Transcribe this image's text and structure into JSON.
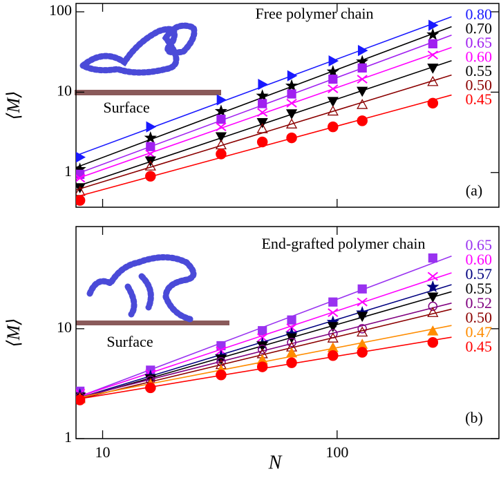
{
  "chart_data": [
    {
      "type": "line",
      "title": "Free polymer chain",
      "annotations": [
        "Surface",
        "(a)"
      ],
      "y_label": "⟨M⟩",
      "log_x": true,
      "log_y": true,
      "xlim": [
        7.7,
        490
      ],
      "ylim": [
        0.37,
        127
      ],
      "xticks": [
        10,
        100
      ],
      "yticks": [
        1,
        10,
        100
      ],
      "x": [
        8,
        16,
        32,
        48,
        64,
        96,
        128,
        256
      ],
      "series": [
        {
          "name": "0.80",
          "color": "#1a1aff",
          "marker": "triangle-right",
          "values": [
            1.55,
            3.7,
            8,
            12.5,
            16,
            24.5,
            33,
            68
          ]
        },
        {
          "name": "0.70",
          "color": "#000000",
          "marker": "star",
          "values": [
            1.1,
            2.7,
            5.8,
            9,
            12,
            18,
            24,
            52
          ]
        },
        {
          "name": "0.65",
          "color": "#a020f0",
          "marker": "square",
          "values": [
            0.95,
            2.1,
            4.6,
            7.2,
            9.5,
            14.5,
            20,
            40
          ]
        },
        {
          "name": "0.60",
          "color": "#ff00ff",
          "marker": "x",
          "values": [
            0.85,
            1.7,
            3.7,
            5.6,
            7.3,
            11,
            14.5,
            29
          ]
        },
        {
          "name": "0.55",
          "color": "#000000",
          "marker": "triangle-down",
          "values": [
            0.65,
            1.4,
            2.8,
            4.2,
            5.4,
            7.7,
            10.3,
            20
          ]
        },
        {
          "name": "0.50",
          "color": "#8b0000",
          "marker": "triangle-up-open",
          "values": [
            0.58,
            1.2,
            2.2,
            3.5,
            4.0,
            5.8,
            7.0,
            13.5
          ]
        },
        {
          "name": "0.45",
          "color": "#ff0000",
          "marker": "circle",
          "values": [
            0.45,
            0.9,
            1.7,
            2.4,
            2.7,
            3.7,
            4.4,
            7.3
          ]
        }
      ]
    },
    {
      "type": "line",
      "title": "End-grafted polymer chain",
      "annotations": [
        "Surface",
        "(b)"
      ],
      "y_label": "⟨M⟩",
      "x_label": "N",
      "log_x": true,
      "log_y": true,
      "xlim": [
        7.7,
        490
      ],
      "ylim": [
        1,
        85
      ],
      "xticks": [
        10,
        100
      ],
      "yticks": [
        1,
        10
      ],
      "x": [
        8,
        16,
        32,
        48,
        64,
        96,
        128,
        256
      ],
      "series": [
        {
          "name": "0.65",
          "color": "#9932f0",
          "marker": "square",
          "values": [
            2.7,
            4.2,
            7,
            9.6,
            12,
            17.5,
            23,
            44
          ]
        },
        {
          "name": "0.60",
          "color": "#ff00ff",
          "marker": "x",
          "values": [
            2.6,
            3.9,
            6.3,
            8.3,
            10.2,
            14,
            17.5,
            30
          ]
        },
        {
          "name": "0.57",
          "color": "#000080",
          "marker": "star",
          "values": [
            2.5,
            3.7,
            5.6,
            7.3,
            9.0,
            11.5,
            14,
            24
          ]
        },
        {
          "name": "0.55",
          "color": "#000000",
          "marker": "triangle-down",
          "values": [
            2.4,
            3.5,
            5.3,
            7,
            8.3,
            10.5,
            13,
            19.5
          ]
        },
        {
          "name": "0.52",
          "color": "#800080",
          "marker": "circle-open",
          "values": [
            2.4,
            3.4,
            5,
            6.5,
            7.5,
            9.0,
            10,
            16
          ]
        },
        {
          "name": "0.50",
          "color": "#8b0000",
          "marker": "triangle-up-open",
          "values": [
            2.35,
            3.2,
            4.7,
            5.9,
            6.8,
            8.2,
            9.3,
            14
          ]
        },
        {
          "name": "0.47",
          "color": "#ff8c00",
          "marker": "triangle-up",
          "values": [
            2.3,
            3.1,
            4.2,
            5.2,
            6.0,
            6.7,
            7.2,
            9.5
          ]
        },
        {
          "name": "0.45",
          "color": "#ff0000",
          "marker": "circle",
          "values": [
            2.25,
            2.9,
            3.8,
            4.5,
            4.9,
            5.7,
            6.1,
            7.5
          ]
        }
      ]
    }
  ]
}
